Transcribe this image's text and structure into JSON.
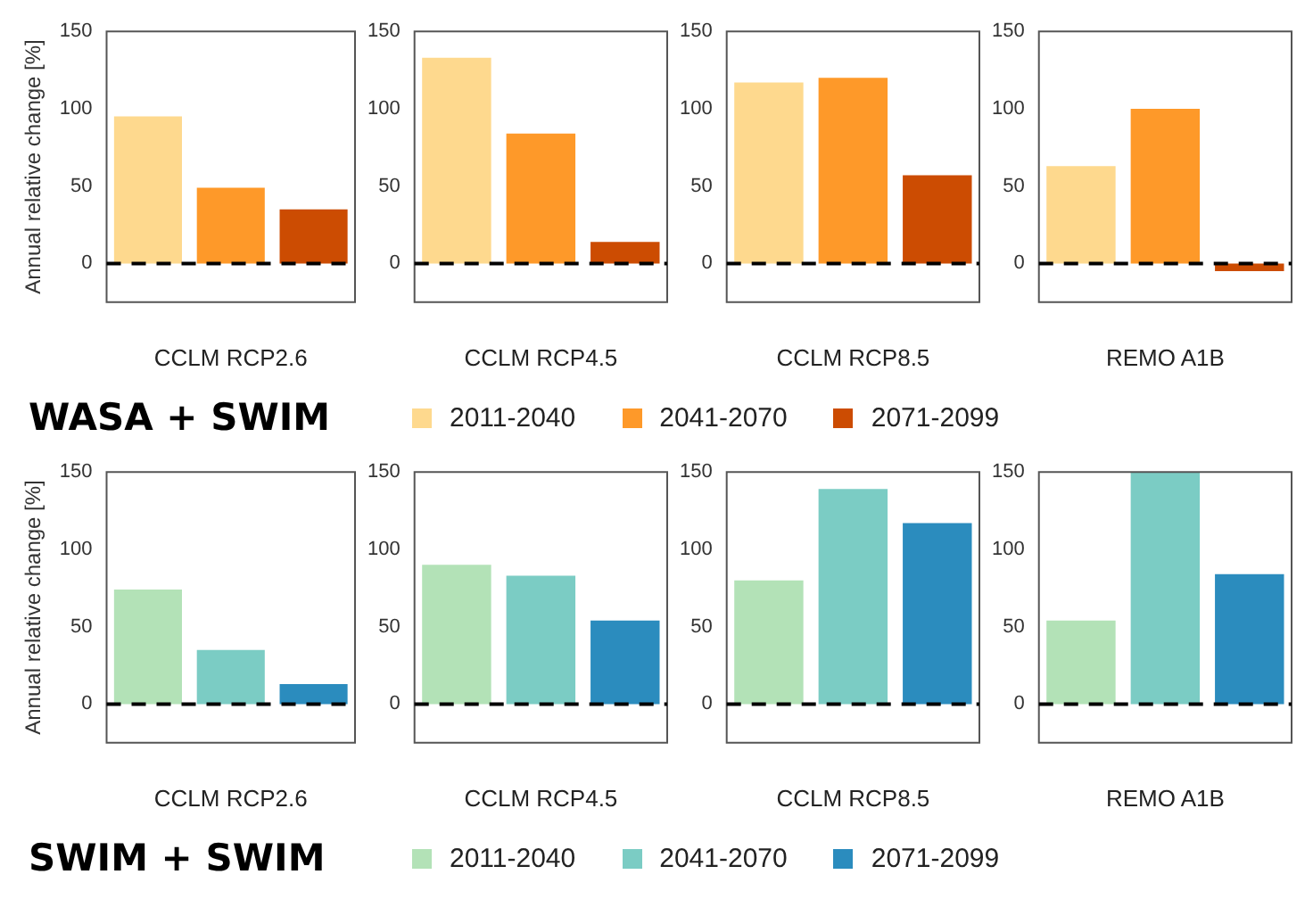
{
  "chart_data": [
    {
      "type": "bar",
      "categories": [
        null
      ],
      "xlabel": "CCLM RCP2.6",
      "ylabel": "Annual relative change [%]",
      "ylim": [
        -25,
        150
      ],
      "yticks": [
        0,
        50,
        100,
        150
      ],
      "tick_labels": "y",
      "grid": false,
      "legend": "bottom",
      "annotations": [
        "WASA + SWIM"
      ],
      "ref_lines": [
        {
          "axis": "y",
          "value": 0,
          "color": "#000000",
          "line_style": "dashed"
        }
      ],
      "series": [
        {
          "name": "2011-2040",
          "color": "#fed98e",
          "values": [
            95
          ]
        },
        {
          "name": "2041-2070",
          "color": "#fe9929",
          "values": [
            49
          ]
        },
        {
          "name": "2071-2099",
          "color": "#cc4c02",
          "values": [
            35
          ]
        }
      ]
    },
    {
      "type": "bar",
      "categories": [
        null
      ],
      "xlabel": "CCLM RCP4.5",
      "ylim": [
        -25,
        150
      ],
      "yticks": [
        0,
        50,
        100,
        150
      ],
      "tick_labels": "y",
      "grid": false,
      "ref_lines": [
        {
          "axis": "y",
          "value": 0,
          "color": "#000000",
          "line_style": "dashed"
        }
      ],
      "series": [
        {
          "color": "#fed98e",
          "values": [
            133
          ]
        },
        {
          "color": "#fe9929",
          "values": [
            84
          ]
        },
        {
          "color": "#cc4c02",
          "values": [
            14
          ]
        }
      ]
    },
    {
      "type": "bar",
      "categories": [
        null
      ],
      "xlabel": "CCLM RCP8.5",
      "ylim": [
        -25,
        150
      ],
      "yticks": [
        0,
        50,
        100,
        150
      ],
      "tick_labels": "y",
      "grid": false,
      "ref_lines": [
        {
          "axis": "y",
          "value": 0,
          "color": "#000000",
          "line_style": "dashed"
        }
      ],
      "series": [
        {
          "color": "#fed98e",
          "values": [
            117
          ]
        },
        {
          "color": "#fe9929",
          "values": [
            120
          ]
        },
        {
          "color": "#cc4c02",
          "values": [
            57
          ]
        }
      ]
    },
    {
      "type": "bar",
      "categories": [
        null
      ],
      "xlabel": "REMO A1B",
      "ylim": [
        -25,
        150
      ],
      "yticks": [
        0,
        50,
        100,
        150
      ],
      "tick_labels": "y",
      "grid": false,
      "ref_lines": [
        {
          "axis": "y",
          "value": 0,
          "color": "#000000",
          "line_style": "dashed"
        }
      ],
      "series": [
        {
          "color": "#fed98e",
          "values": [
            63
          ]
        },
        {
          "color": "#fe9929",
          "values": [
            100
          ]
        },
        {
          "color": "#cc4c02",
          "values": [
            -5
          ]
        }
      ]
    },
    {
      "type": "bar",
      "categories": [
        null
      ],
      "xlabel": "CCLM RCP2.6",
      "ylabel": "Annual relative change [%]",
      "ylim": [
        -25,
        150
      ],
      "yticks": [
        0,
        50,
        100,
        150
      ],
      "tick_labels": "y",
      "grid": false,
      "legend": "bottom",
      "annotations": [
        "SWIM + SWIM"
      ],
      "ref_lines": [
        {
          "axis": "y",
          "value": 0,
          "color": "#000000",
          "line_style": "dashed"
        }
      ],
      "series": [
        {
          "name": "2011-2040",
          "color": "#b3e2b7",
          "values": [
            74
          ]
        },
        {
          "name": "2041-2070",
          "color": "#7bccc4",
          "values": [
            35
          ]
        },
        {
          "name": "2071-2099",
          "color": "#2b8cbe",
          "values": [
            13
          ]
        }
      ]
    },
    {
      "type": "bar",
      "categories": [
        null
      ],
      "xlabel": "CCLM RCP4.5",
      "ylim": [
        -25,
        150
      ],
      "yticks": [
        0,
        50,
        100,
        150
      ],
      "tick_labels": "y",
      "grid": false,
      "ref_lines": [
        {
          "axis": "y",
          "value": 0,
          "color": "#000000",
          "line_style": "dashed"
        }
      ],
      "series": [
        {
          "color": "#b3e2b7",
          "values": [
            90
          ]
        },
        {
          "color": "#7bccc4",
          "values": [
            83
          ]
        },
        {
          "color": "#2b8cbe",
          "values": [
            54
          ]
        }
      ]
    },
    {
      "type": "bar",
      "categories": [
        null
      ],
      "xlabel": "CCLM RCP8.5",
      "ylim": [
        -25,
        150
      ],
      "yticks": [
        0,
        50,
        100,
        150
      ],
      "tick_labels": "y",
      "grid": false,
      "ref_lines": [
        {
          "axis": "y",
          "value": 0,
          "color": "#000000",
          "line_style": "dashed"
        }
      ],
      "series": [
        {
          "color": "#b3e2b7",
          "values": [
            80
          ]
        },
        {
          "color": "#7bccc4",
          "values": [
            139
          ]
        },
        {
          "color": "#2b8cbe",
          "values": [
            117
          ]
        }
      ]
    },
    {
      "type": "bar",
      "categories": [
        null
      ],
      "xlabel": "REMO A1B",
      "ylim": [
        -25,
        150
      ],
      "yticks": [
        0,
        50,
        100,
        150
      ],
      "tick_labels": "y",
      "grid": false,
      "ref_lines": [
        {
          "axis": "y",
          "value": 0,
          "color": "#000000",
          "line_style": "dashed"
        }
      ],
      "series": [
        {
          "color": "#b3e2b7",
          "values": [
            54
          ]
        },
        {
          "color": "#7bccc4",
          "values": [
            150
          ]
        },
        {
          "color": "#2b8cbe",
          "values": [
            84
          ]
        }
      ]
    }
  ]
}
